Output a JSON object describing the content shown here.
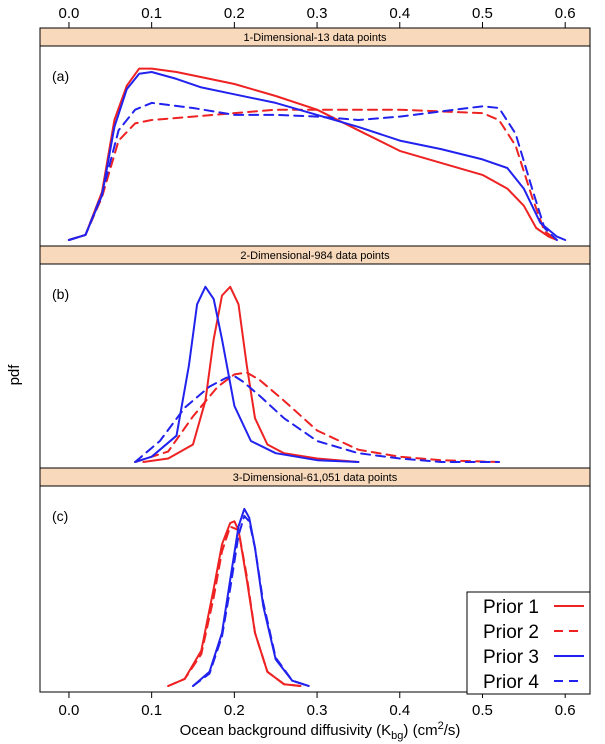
{
  "chart_data": {
    "type": "line",
    "xlabel": "Ocean background diffusivity (K",
    "xlabel_sub": "bg",
    "xlabel_units_pre": ") (cm",
    "xlabel_sup": "2",
    "xlabel_units_post": "/s)",
    "ylabel": "pdf",
    "xlim": [
      -0.035,
      0.63
    ],
    "x_ticks": [
      0.0,
      0.1,
      0.2,
      0.3,
      0.4,
      0.5,
      0.6
    ],
    "x_tick_labels": [
      "0.0",
      "0.1",
      "0.2",
      "0.3",
      "0.4",
      "0.5",
      "0.6"
    ],
    "grid": false,
    "legend": {
      "position": "bottom-right",
      "entries": [
        {
          "label": "Prior 1",
          "color": "#ee2222",
          "dash": "solid"
        },
        {
          "label": "Prior 2",
          "color": "#ee2222",
          "dash": "dashed"
        },
        {
          "label": "Prior 3",
          "color": "#2222ee",
          "dash": "solid"
        },
        {
          "label": "Prior 4",
          "color": "#2222ee",
          "dash": "dashed"
        }
      ]
    },
    "panels": [
      {
        "strip_title": "1-Dimensional-13 data points",
        "tag": "(a)",
        "ylim": [
          0,
          1.05
        ],
        "series": [
          {
            "color": "#ee2222",
            "dash": "solid",
            "x": [
              0.0,
              0.02,
              0.04,
              0.055,
              0.07,
              0.085,
              0.1,
              0.13,
              0.16,
              0.2,
              0.25,
              0.3,
              0.35,
              0.4,
              0.45,
              0.5,
              0.53,
              0.55,
              0.565,
              0.58,
              0.59
            ],
            "y": [
              0.0,
              0.03,
              0.28,
              0.7,
              0.9,
              1.0,
              1.0,
              0.98,
              0.95,
              0.91,
              0.84,
              0.76,
              0.64,
              0.52,
              0.45,
              0.38,
              0.3,
              0.2,
              0.07,
              0.02,
              0.0
            ]
          },
          {
            "color": "#ee2222",
            "dash": "dashed",
            "x": [
              0.0,
              0.02,
              0.04,
              0.06,
              0.08,
              0.1,
              0.15,
              0.2,
              0.25,
              0.3,
              0.35,
              0.4,
              0.45,
              0.5,
              0.52,
              0.54,
              0.56,
              0.575,
              0.59
            ],
            "y": [
              0.0,
              0.03,
              0.25,
              0.58,
              0.68,
              0.7,
              0.72,
              0.74,
              0.76,
              0.76,
              0.76,
              0.76,
              0.75,
              0.74,
              0.7,
              0.55,
              0.25,
              0.05,
              0.0
            ]
          },
          {
            "color": "#2222ee",
            "dash": "solid",
            "x": [
              0.0,
              0.02,
              0.04,
              0.055,
              0.07,
              0.085,
              0.1,
              0.13,
              0.16,
              0.2,
              0.25,
              0.3,
              0.35,
              0.4,
              0.45,
              0.5,
              0.53,
              0.55,
              0.57,
              0.59,
              0.6
            ],
            "y": [
              0.0,
              0.03,
              0.26,
              0.66,
              0.88,
              0.97,
              0.98,
              0.94,
              0.89,
              0.85,
              0.8,
              0.73,
              0.66,
              0.58,
              0.53,
              0.47,
              0.42,
              0.3,
              0.1,
              0.02,
              0.0
            ]
          },
          {
            "color": "#2222ee",
            "dash": "dashed",
            "x": [
              0.0,
              0.02,
              0.04,
              0.06,
              0.08,
              0.1,
              0.15,
              0.2,
              0.25,
              0.3,
              0.35,
              0.4,
              0.45,
              0.5,
              0.52,
              0.54,
              0.56,
              0.575,
              0.59
            ],
            "y": [
              0.0,
              0.03,
              0.27,
              0.64,
              0.76,
              0.8,
              0.77,
              0.73,
              0.73,
              0.72,
              0.7,
              0.72,
              0.75,
              0.78,
              0.77,
              0.62,
              0.3,
              0.07,
              0.0
            ]
          }
        ]
      },
      {
        "strip_title": "2-Dimensional-984 data points",
        "tag": "(b)",
        "ylim": [
          0,
          1.05
        ],
        "series": [
          {
            "color": "#ee2222",
            "dash": "solid",
            "x": [
              0.09,
              0.12,
              0.15,
              0.165,
              0.175,
              0.185,
              0.195,
              0.205,
              0.215,
              0.225,
              0.24,
              0.26,
              0.3,
              0.35
            ],
            "y": [
              0.0,
              0.02,
              0.1,
              0.35,
              0.7,
              0.95,
              1.0,
              0.9,
              0.55,
              0.25,
              0.1,
              0.05,
              0.02,
              0.0
            ]
          },
          {
            "color": "#ee2222",
            "dash": "dashed",
            "x": [
              0.08,
              0.12,
              0.15,
              0.18,
              0.2,
              0.215,
              0.23,
              0.26,
              0.3,
              0.35,
              0.4,
              0.45,
              0.52
            ],
            "y": [
              0.0,
              0.06,
              0.26,
              0.43,
              0.5,
              0.51,
              0.47,
              0.35,
              0.18,
              0.07,
              0.03,
              0.01,
              0.0
            ]
          },
          {
            "color": "#2222ee",
            "dash": "solid",
            "x": [
              0.08,
              0.1,
              0.13,
              0.145,
              0.155,
              0.165,
              0.175,
              0.185,
              0.2,
              0.22,
              0.25,
              0.3,
              0.35
            ],
            "y": [
              0.0,
              0.03,
              0.15,
              0.55,
              0.9,
              1.0,
              0.93,
              0.7,
              0.32,
              0.12,
              0.05,
              0.01,
              0.0
            ]
          },
          {
            "color": "#2222ee",
            "dash": "dashed",
            "x": [
              0.08,
              0.11,
              0.14,
              0.17,
              0.19,
              0.2,
              0.21,
              0.23,
              0.26,
              0.3,
              0.35,
              0.4,
              0.45,
              0.52
            ],
            "y": [
              0.0,
              0.12,
              0.31,
              0.43,
              0.48,
              0.49,
              0.46,
              0.38,
              0.25,
              0.12,
              0.05,
              0.02,
              0.0,
              0.0
            ]
          }
        ]
      },
      {
        "strip_title": "3-Dimensional-61,051 data points",
        "tag": "(c)",
        "ylim": [
          0,
          1.05
        ],
        "series": [
          {
            "color": "#ee2222",
            "dash": "solid",
            "x": [
              0.12,
              0.14,
              0.16,
              0.175,
              0.185,
              0.195,
              0.2,
              0.205,
              0.215,
              0.225,
              0.24,
              0.26,
              0.28
            ],
            "y": [
              0.0,
              0.04,
              0.2,
              0.55,
              0.8,
              0.92,
              0.93,
              0.88,
              0.6,
              0.3,
              0.08,
              0.01,
              0.0
            ]
          },
          {
            "color": "#ee2222",
            "dash": "dashed",
            "x": [
              0.12,
              0.14,
              0.16,
              0.175,
              0.185,
              0.195,
              0.205,
              0.215,
              0.225,
              0.24,
              0.26,
              0.28
            ],
            "y": [
              0.0,
              0.04,
              0.18,
              0.5,
              0.76,
              0.9,
              0.88,
              0.62,
              0.3,
              0.08,
              0.01,
              0.0
            ]
          },
          {
            "color": "#2222ee",
            "dash": "solid",
            "x": [
              0.15,
              0.17,
              0.185,
              0.195,
              0.205,
              0.212,
              0.218,
              0.225,
              0.235,
              0.25,
              0.27,
              0.29
            ],
            "y": [
              0.0,
              0.08,
              0.3,
              0.6,
              0.9,
              1.0,
              0.95,
              0.78,
              0.45,
              0.15,
              0.03,
              0.0
            ]
          },
          {
            "color": "#2222ee",
            "dash": "dashed",
            "x": [
              0.15,
              0.17,
              0.185,
              0.195,
              0.205,
              0.212,
              0.218,
              0.225,
              0.235,
              0.25,
              0.27,
              0.29
            ],
            "y": [
              0.0,
              0.07,
              0.28,
              0.55,
              0.85,
              0.96,
              0.93,
              0.78,
              0.47,
              0.16,
              0.03,
              0.0
            ]
          }
        ]
      }
    ]
  }
}
